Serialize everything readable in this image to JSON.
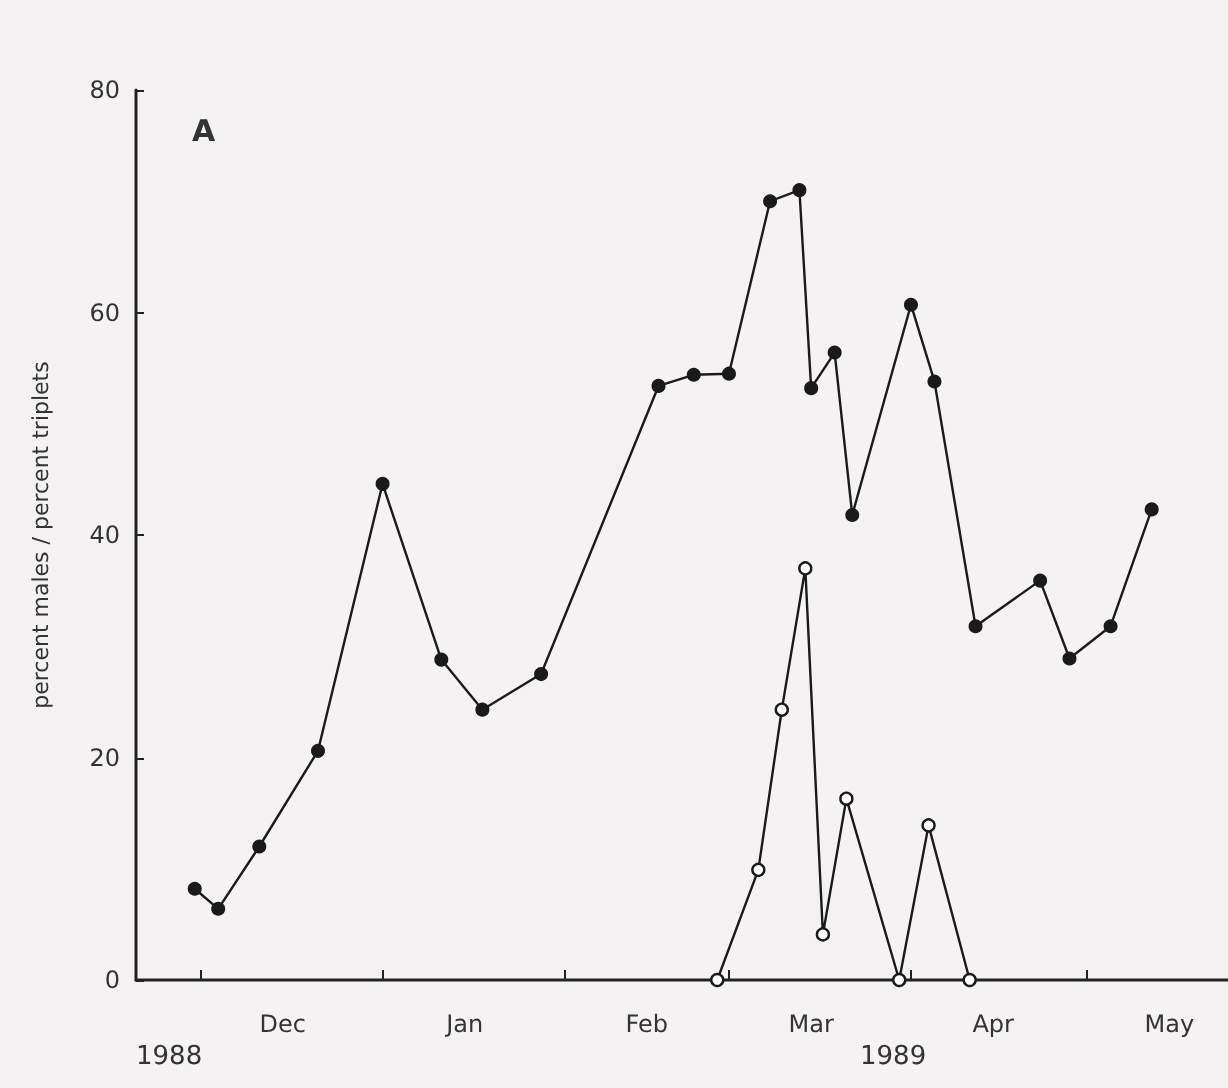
{
  "chart_data": {
    "type": "line",
    "ylabel": "percent males / percent triplets",
    "annotations": [
      "A",
      "1988",
      "1989"
    ],
    "series": [
      {
        "color": "#1a1a1a",
        "marker": "circle",
        "x": [
          "1988-11-30",
          "1988-12-04",
          "1988-12-11",
          "1988-12-21",
          "1989-01-01",
          "1989-01-11",
          "1989-01-18",
          "1989-01-28",
          "1989-02-17",
          "1989-02-23",
          "1989-03-01",
          "1989-03-08",
          "1989-03-13",
          "1989-03-15",
          "1989-03-19",
          "1989-03-22",
          "1989-04-01",
          "1989-04-05",
          "1989-04-12",
          "1989-04-23",
          "1989-04-28",
          "1989-05-05",
          "1989-05-12"
        ],
        "values": [
          8.2,
          6.4,
          12,
          20.6,
          44.6,
          28.8,
          24.3,
          27.5,
          53.4,
          54.4,
          54.5,
          70,
          71,
          53.2,
          56.4,
          41.8,
          60.7,
          53.8,
          31.8,
          35.9,
          28.9,
          31.8,
          42.3
        ]
      },
      {
        "color": "#1a1a1a",
        "marker": "circle",
        "x": [
          "1989-02-27",
          "1989-03-06",
          "1989-03-10",
          "1989-03-14",
          "1989-03-17",
          "1989-03-21",
          "1989-03-30",
          "1989-04-04",
          "1989-04-11"
        ],
        "values": [
          0,
          9.9,
          24.3,
          37,
          4.1,
          16.3,
          0,
          13.9,
          0
        ]
      }
    ],
    "xlim": [
      "1988-11-20",
      "1989-05-25"
    ],
    "xticks": [
      {
        "value": "1988-12-01",
        "label": null
      },
      {
        "value": "1989-01-01",
        "label": null
      },
      {
        "value": "1989-02-01",
        "label": null
      },
      {
        "value": "1989-03-01",
        "label": null
      },
      {
        "value": "1989-04-01",
        "label": null
      },
      {
        "value": "1989-05-01",
        "label": null
      },
      {
        "value": "1988-12-15",
        "label": "Dec"
      },
      {
        "value": "1989-01-15",
        "label": "Jan"
      },
      {
        "value": "1989-02-15",
        "label": "Feb"
      },
      {
        "value": "1989-03-15",
        "label": "Mar"
      },
      {
        "value": "1989-04-15",
        "label": "Apr"
      },
      {
        "value": "1989-05-15",
        "label": "May"
      }
    ],
    "ylim": [
      0,
      80
    ],
    "yticks": [
      0,
      20,
      40,
      60,
      80
    ],
    "line_style": "solid"
  }
}
